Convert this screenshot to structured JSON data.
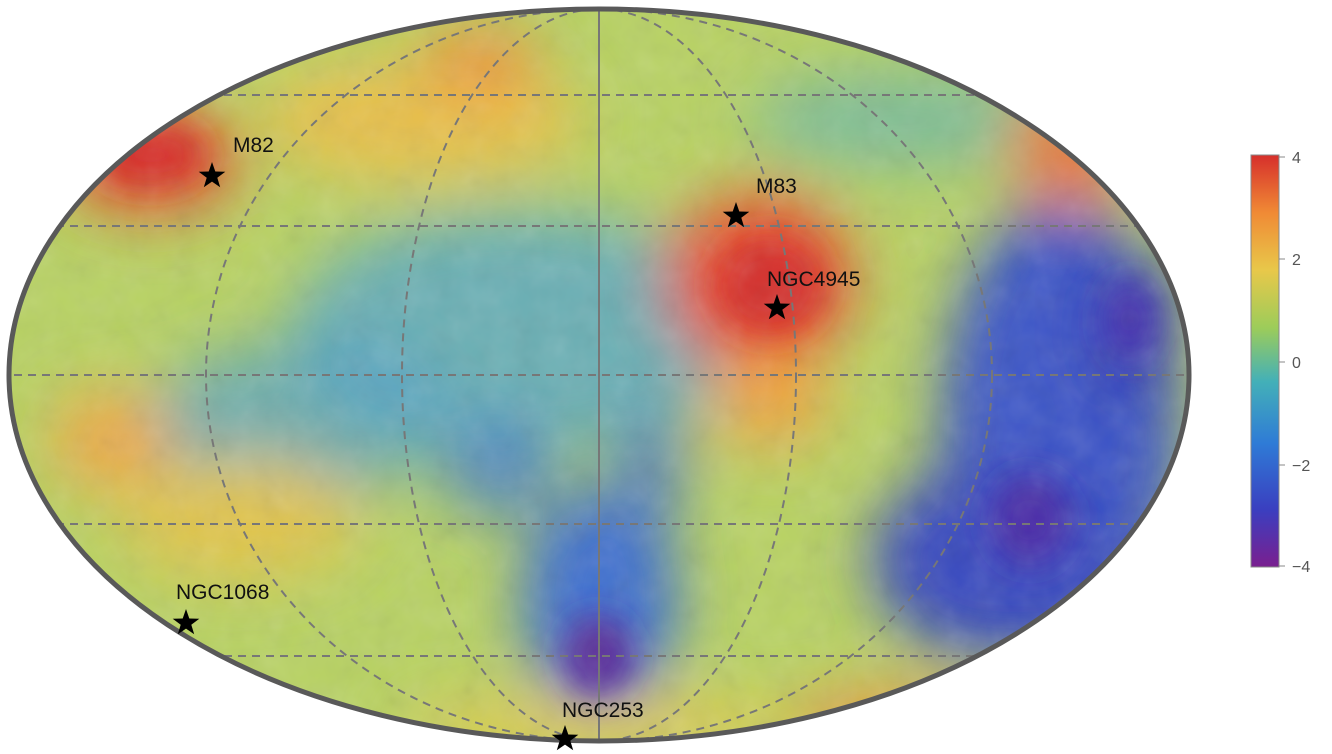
{
  "map": {
    "projection": "mollweide",
    "grid": "on",
    "colors": {
      "outline": "#595959",
      "grid": "#777777",
      "scale": [
        "#7a1f8f",
        "#3a3fc0",
        "#2f7bd6",
        "#43b0b8",
        "#9ccc5a",
        "#e8c84a",
        "#f08a35",
        "#d62f2b"
      ]
    },
    "sources": [
      {
        "name": "M82",
        "value": 3.6
      },
      {
        "name": "M83",
        "value": 3.4
      },
      {
        "name": "NGC4945",
        "value": 3.9
      },
      {
        "name": "NGC1068",
        "value": 0.8
      },
      {
        "name": "NGC253",
        "value": 0.5
      }
    ]
  },
  "colorbar": {
    "min": -4,
    "max": 4,
    "ticks": [
      "4",
      "2",
      "0",
      "−2",
      "−4"
    ]
  }
}
